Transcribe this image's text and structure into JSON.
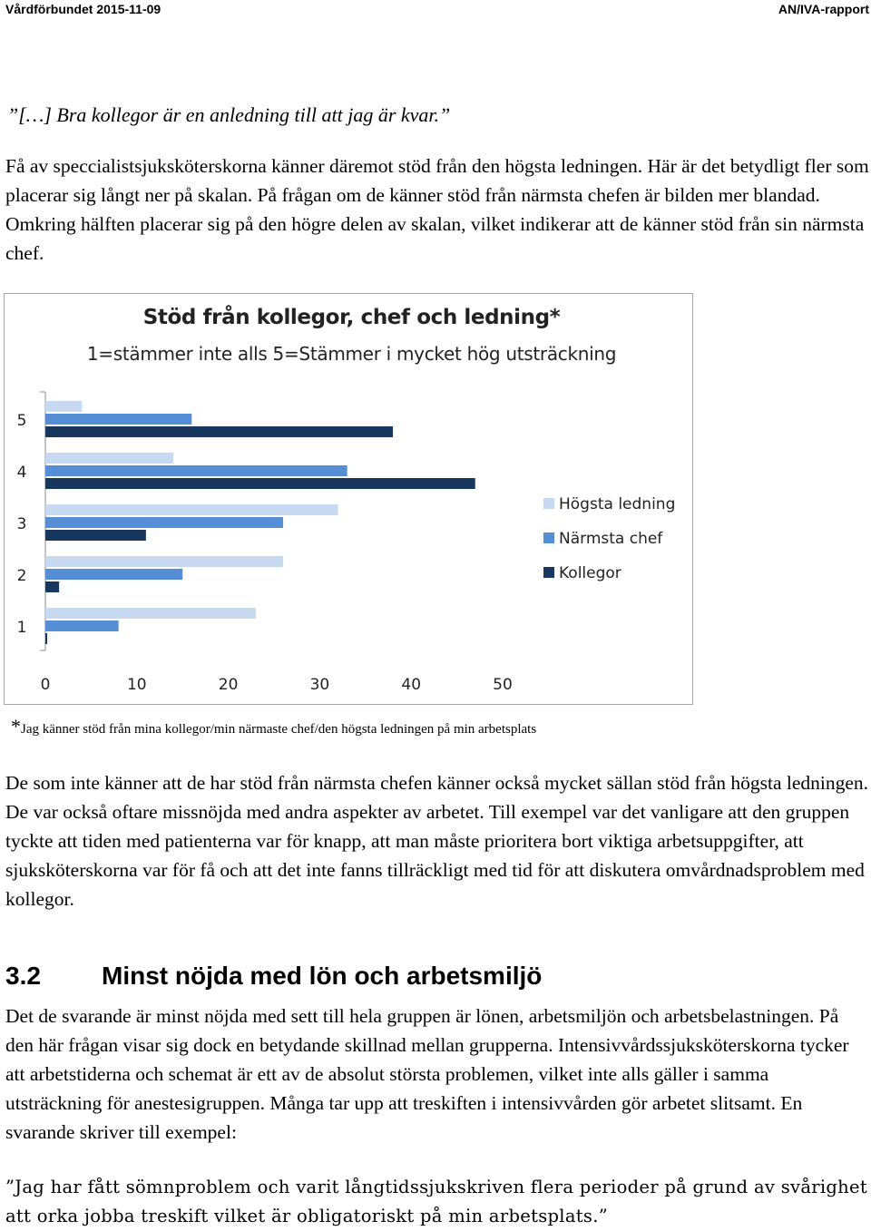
{
  "header": {
    "left": "Vårdförbundet 2015-11-09",
    "right": "AN/IVA-rapport"
  },
  "quote1": "”[…] Bra kollegor är en anledning till att jag är kvar.”",
  "paragraph1": "Få av speccialistsjuksköterskorna känner däremot stöd från den högsta ledningen. Här är det betydligt fler som placerar sig långt ner på skalan. På frågan om de känner stöd från närmsta chefen är bilden mer blandad. Omkring hälften placerar sig på den högre delen av skalan, vilket indikerar att de känner stöd från sin närmsta chef.",
  "chart_data": {
    "type": "bar",
    "orientation": "horizontal",
    "title": "Stöd från kollegor, chef och ledning*",
    "subtitle": "1=stämmer inte alls 5=Stämmer i mycket hög utsträckning",
    "categories": [
      "5",
      "4",
      "3",
      "2",
      "1"
    ],
    "series": [
      {
        "name": "Högsta ledning",
        "color": "#c6d9f1",
        "values": [
          4,
          14,
          32,
          26,
          23
        ]
      },
      {
        "name": "Närmsta chef",
        "color": "#558ed5",
        "values": [
          16,
          33,
          26,
          15,
          8
        ]
      },
      {
        "name": "Kollegor",
        "color": "#17375e",
        "values": [
          38,
          47,
          11,
          1.5,
          0.2
        ]
      }
    ],
    "xlim": [
      0,
      50
    ],
    "xticks": [
      "0",
      "10",
      "20",
      "30",
      "40",
      "50"
    ],
    "grid": false,
    "legend": "right"
  },
  "footnote": {
    "star": "*",
    "text": "Jag känner stöd från mina kollegor/min närmaste chef/den högsta ledningen på min arbetsplats"
  },
  "paragraph2": "De som inte känner att de har stöd från närmsta chefen känner också mycket sällan stöd från högsta ledningen. De var också oftare missnöjda med andra aspekter av arbetet. Till exempel var det vanligare att den gruppen tyckte att tiden med patienterna var för knapp, att man måste prioritera bort viktiga arbetsuppgifter, att sjuksköterskorna var för få och att det inte fanns tillräckligt med tid för att diskutera omvårdnadsproblem med kollegor.",
  "section": {
    "number": "3.2",
    "title": "Minst nöjda med lön och arbetsmiljö"
  },
  "paragraph3": "Det de svarande är minst nöjda med sett till hela gruppen är lönen, arbetsmiljön och arbetsbelastningen. På den här frågan visar sig dock en betydande skillnad mellan grupperna. Intensivvårdssjuksköterskorna tycker att arbetstiderna och schemat är ett av de absolut största problemen, vilket inte alls gäller i samma utsträckning för anestesigruppen. Många tar upp att treskiften i intensivvården gör arbetet slitsamt. En svarande skriver till exempel:",
  "quote2": "”Jag har fått sömnproblem och varit långtidssjukskriven flera perioder på grund av svårighet att orka jobba treskift vilket är obligatoriskt på min arbetsplats.”"
}
